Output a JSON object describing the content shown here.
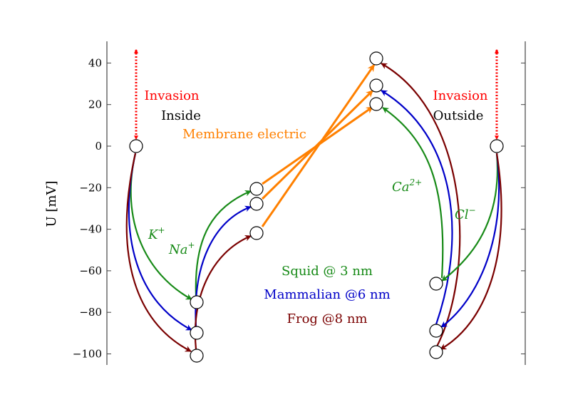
{
  "chart_data": {
    "type": "diagram",
    "ylabel": "U [mV]",
    "ylim": [
      -105,
      50
    ],
    "yticks": [
      40,
      20,
      0,
      -20,
      -40,
      -60,
      -80,
      -100
    ],
    "labels": {
      "invasion_left": "Invasion",
      "inside": "Inside",
      "membrane": "Membrane electric",
      "invasion_right": "Invasion",
      "outside": "Outside",
      "ion_k": "K",
      "ion_k_sup": "+",
      "ion_na": "Na",
      "ion_na_sup": "+",
      "ion_ca": "Ca",
      "ion_ca_sup": "2+",
      "ion_cl": "Cl",
      "ion_cl_sup": "−"
    },
    "legend": [
      {
        "name": "Squid @ 3 nm",
        "color": "#178a17"
      },
      {
        "name": "Mammalian @6 nm",
        "color": "#0000c8"
      },
      {
        "name": "Frog @8 nm",
        "color": "#7a0000"
      }
    ],
    "series": [
      {
        "name": "Squid",
        "color": "#178a17",
        "inner_rest": -75,
        "membrane_inner": -21,
        "membrane_outer": 20,
        "outer_rest": -66
      },
      {
        "name": "Mammalian",
        "color": "#0000c8",
        "inner_rest": -90,
        "membrane_inner": -28,
        "membrane_outer": 29,
        "outer_rest": -89
      },
      {
        "name": "Frog",
        "color": "#7a0000",
        "inner_rest": -101,
        "membrane_inner": -42,
        "membrane_outer": 42,
        "outer_rest": -99
      }
    ],
    "resting_inside": 0,
    "resting_outside": 0,
    "colors": {
      "invasion": "#ff0000",
      "membrane": "#ff8000",
      "text": "#000000"
    }
  }
}
